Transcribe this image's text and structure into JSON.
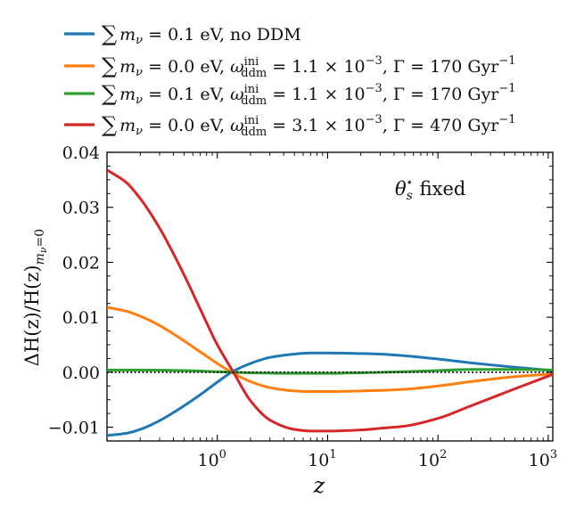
{
  "chart_data": {
    "type": "line",
    "title": "",
    "annotation": "θ_s^⋆ fixed",
    "annotation_parts": {
      "symbol": "θ",
      "sub": "s",
      "sup": "⋆",
      "text": "fixed"
    },
    "xlabel": "z",
    "ylabel": "ΔH(z)/H(z)_{m_ν=0}",
    "ylabel_parts": {
      "main": "ΔH(z)/H(z)",
      "sub": "m",
      "subsub": "ν",
      "tail": "=0"
    },
    "xscale": "log",
    "xlim": [
      0.1,
      1100
    ],
    "ylim": [
      -0.0125,
      0.04
    ],
    "xticks": [
      {
        "value": 1,
        "base": "10",
        "exp": "0"
      },
      {
        "value": 10,
        "base": "10",
        "exp": "1"
      },
      {
        "value": 100,
        "base": "10",
        "exp": "2"
      },
      {
        "value": 1000,
        "base": "10",
        "exp": "3"
      }
    ],
    "yticks": [
      {
        "value": 0.04,
        "label": "0.04"
      },
      {
        "value": 0.03,
        "label": "0.03"
      },
      {
        "value": 0.02,
        "label": "0.02"
      },
      {
        "value": 0.01,
        "label": "0.01"
      },
      {
        "value": 0.0,
        "label": "0.00"
      },
      {
        "value": -0.01,
        "label": "−0.01"
      }
    ],
    "reference_line": {
      "y": 0,
      "style": "dotted",
      "color": "#000000"
    },
    "legend_position": "top-left, above axes",
    "series": [
      {
        "name": "∑ m_ν = 0.1 eV, no DDM",
        "legend": {
          "text": " = 0.1 eV, no DDM"
        },
        "color": "#1f77b4",
        "x": [
          0.1,
          0.15,
          0.2,
          0.3,
          0.5,
          0.7,
          1.0,
          1.4,
          2,
          3,
          5,
          7,
          10,
          20,
          30,
          50,
          100,
          200,
          500,
          1100
        ],
        "y": [
          -0.0115,
          -0.0111,
          -0.0104,
          -0.0088,
          -0.0061,
          -0.0041,
          -0.0018,
          0.0002,
          0.0016,
          0.0027,
          0.0033,
          0.0035,
          0.0035,
          0.0034,
          0.0033,
          0.003,
          0.0024,
          0.0017,
          0.0009,
          0.0003
        ]
      },
      {
        "name": "∑ m_ν = 0.0 eV, ω_ddm^ini = 1.1 × 10^−3, Γ = 170 Gyr^−1",
        "legend": {
          "text1": " = 0.0 eV, ",
          "text2": " = 1.1 × 10",
          "exp1": "−3",
          "text3": ", Γ = 170 Gyr",
          "exp2": "−1"
        },
        "color": "#ff7f0e",
        "x": [
          0.1,
          0.15,
          0.2,
          0.3,
          0.5,
          0.7,
          1.0,
          1.4,
          2,
          3,
          5,
          7,
          10,
          20,
          30,
          50,
          100,
          200,
          500,
          1100
        ],
        "y": [
          0.0118,
          0.0111,
          0.0102,
          0.0085,
          0.0057,
          0.0037,
          0.0016,
          -0.0002,
          -0.0017,
          -0.0028,
          -0.0034,
          -0.0035,
          -0.0035,
          -0.0034,
          -0.0033,
          -0.0031,
          -0.0025,
          -0.0017,
          -0.0008,
          -0.0003
        ]
      },
      {
        "name": "∑ m_ν = 0.1 eV, ω_ddm^ini = 1.1 × 10^−3, Γ = 170 Gyr^−1",
        "legend": {
          "text1": " = 0.1 eV, ",
          "text2": " = 1.1 × 10",
          "exp1": "−3",
          "text3": ", Γ = 170 Gyr",
          "exp2": "−1"
        },
        "color": "#2ca02c",
        "x": [
          0.1,
          0.2,
          0.5,
          1.0,
          1.4,
          2,
          5,
          10,
          20,
          50,
          100,
          200,
          500,
          1100
        ],
        "y": [
          0.0004,
          0.0004,
          0.0003,
          0.0001,
          0.0,
          -0.0001,
          -0.0002,
          -0.0002,
          -0.0001,
          0.0001,
          0.0003,
          0.0005,
          0.0005,
          0.0004
        ]
      },
      {
        "name": "∑ m_ν = 0.0 eV, ω_ddm^ini = 3.1 × 10^−3, Γ = 470 Gyr^−1",
        "legend": {
          "text1": " = 0.0 eV, ",
          "text2": " = 3.1 × 10",
          "exp1": "−3",
          "text3": ", Γ = 470 Gyr",
          "exp2": "−1"
        },
        "color": "#d62728",
        "x": [
          0.1,
          0.15,
          0.2,
          0.3,
          0.5,
          0.7,
          1.0,
          1.4,
          2,
          3,
          5,
          7,
          10,
          20,
          30,
          50,
          100,
          200,
          500,
          1100
        ],
        "y": [
          0.0368,
          0.0345,
          0.0316,
          0.0262,
          0.0177,
          0.0115,
          0.005,
          0.0,
          -0.0052,
          -0.0087,
          -0.0104,
          -0.0107,
          -0.0107,
          -0.0105,
          -0.0102,
          -0.0098,
          -0.0084,
          -0.0061,
          -0.003,
          -0.0004
        ]
      }
    ]
  },
  "legend_common": {
    "sum": "∑",
    "m": "m",
    "nu": "ν",
    "omega": "ω",
    "ini": "ini",
    "ddm": "ddm"
  }
}
